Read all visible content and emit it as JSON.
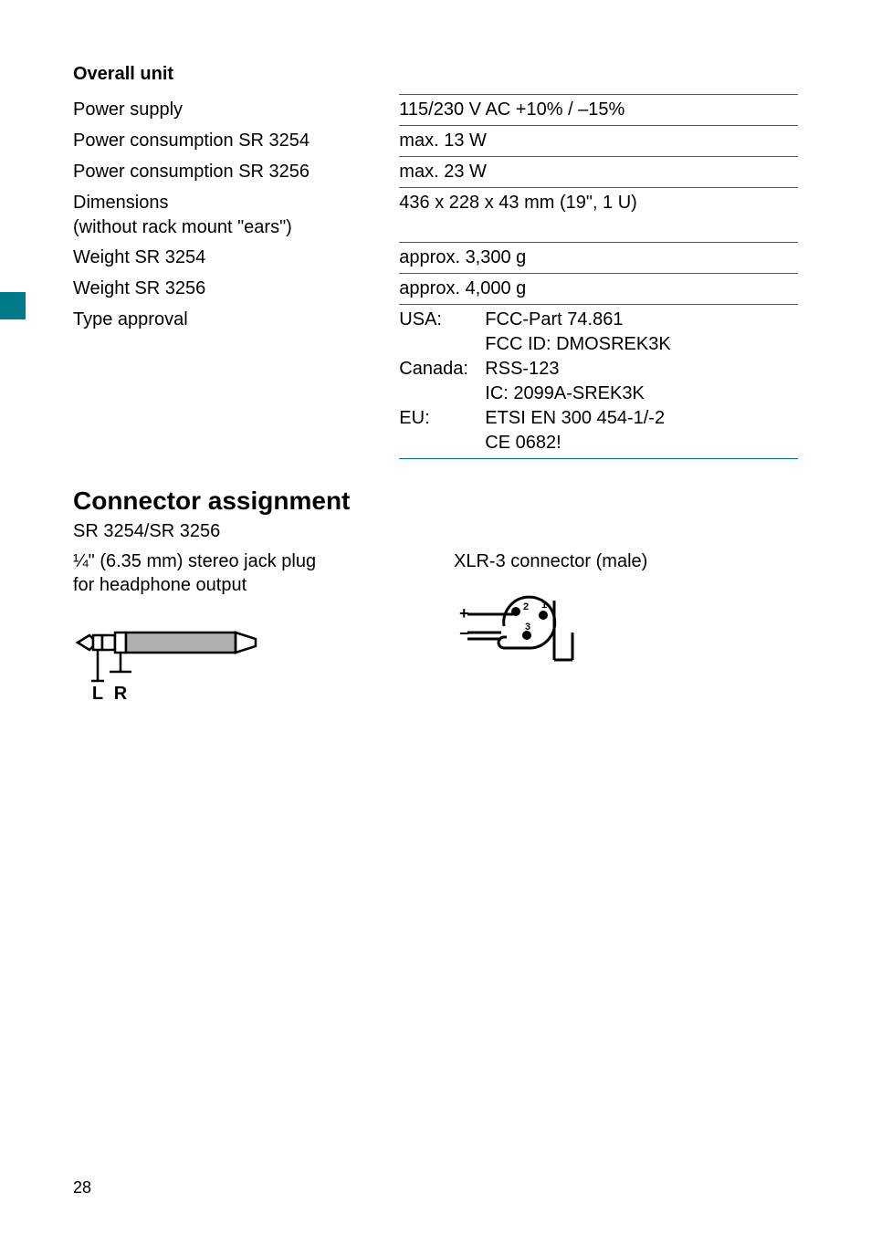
{
  "colors": {
    "accent": "#007a8a",
    "text": "#000000",
    "background": "#ffffff",
    "jack_fill": "#b0b0b0"
  },
  "overall_unit": {
    "heading": "Overall unit",
    "rows": [
      {
        "label": "Power supply",
        "value": "115/230 V AC +10% / –15%"
      },
      {
        "label": "Power consumption SR 3254",
        "value": "max. 13 W"
      },
      {
        "label": "Power consumption SR 3256",
        "value": "max. 23 W"
      },
      {
        "label": "Dimensions\n(without rack mount \"ears\")",
        "value": "436 x 228 x 43 mm (19\", 1 U)"
      },
      {
        "label": "Weight SR 3254",
        "value": "approx. 3,300 g"
      },
      {
        "label": "Weight SR 3256",
        "value": "approx. 4,000 g"
      }
    ],
    "type_approval": {
      "label": "Type approval",
      "entries": [
        {
          "region": "USA:",
          "lines": [
            "FCC-Part 74.861",
            "FCC ID: DMOSREK3K"
          ]
        },
        {
          "region": "Canada:",
          "lines": [
            "RSS-123",
            "IC: 2099A-SREK3K"
          ]
        },
        {
          "region": "EU:",
          "lines": [
            "ETSI EN 300 454-1/-2",
            "CE 0682!"
          ]
        }
      ]
    }
  },
  "connectors": {
    "heading": "Connector assignment",
    "model": "SR 3254/SR 3256",
    "left": {
      "label_line1": "¼\" (6.35 mm) stereo jack plug",
      "label_line2": "for headphone output",
      "diagram": {
        "tip_label": "L",
        "ring_label": "R"
      }
    },
    "right": {
      "label_line1": "XLR-3 connector (male)",
      "diagram": {
        "plus_label": "+",
        "minus_label": "−",
        "pin1": "1",
        "pin2": "2",
        "pin3": "3"
      }
    }
  },
  "page_number": "28"
}
